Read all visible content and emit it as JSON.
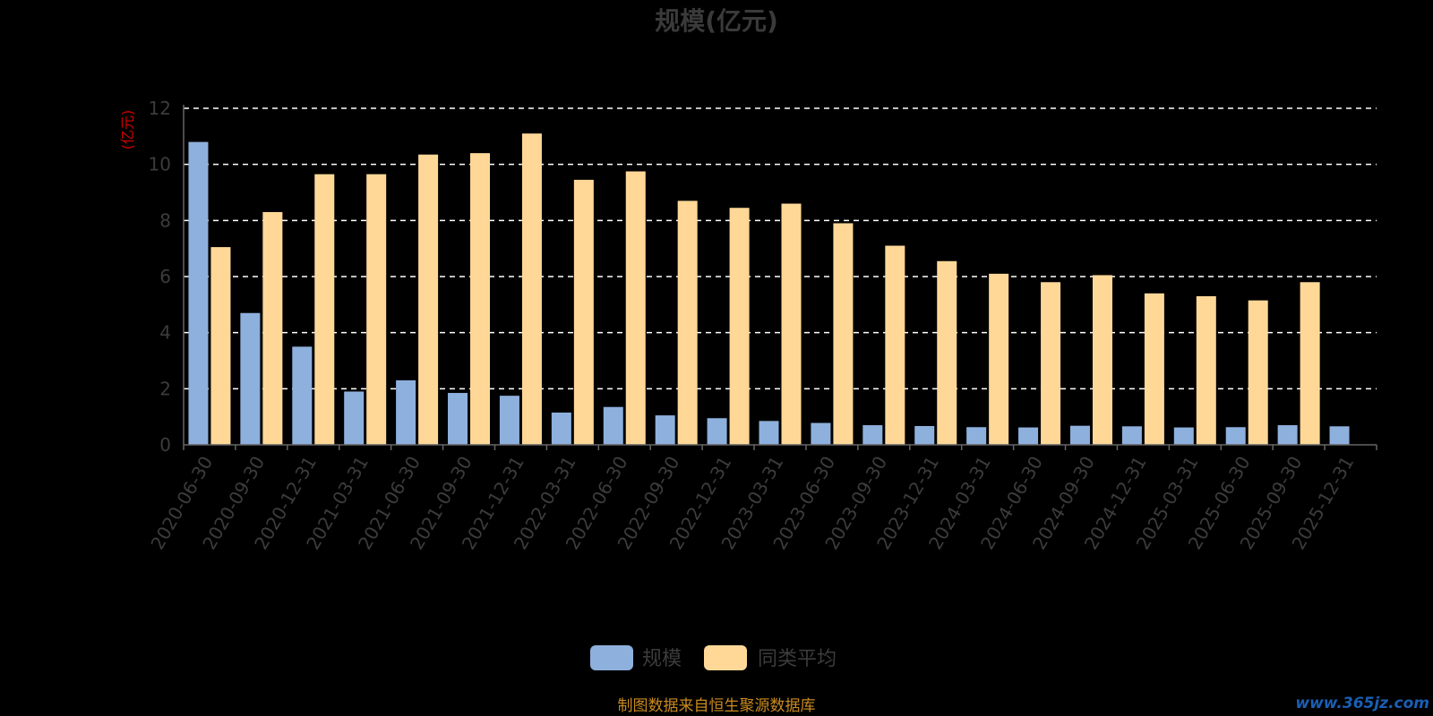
{
  "chart_data": {
    "type": "bar",
    "title": "规模(亿元)",
    "ylabel": "(亿元)",
    "ylim": [
      0,
      12
    ],
    "yticks": [
      0,
      2,
      4,
      6,
      8,
      10,
      12
    ],
    "grid": true,
    "legend_position": "bottom",
    "categories": [
      "2020-06-30",
      "2020-09-30",
      "2020-12-31",
      "2021-03-31",
      "2021-06-30",
      "2021-09-30",
      "2021-12-31",
      "2022-03-31",
      "2022-06-30",
      "2022-09-30",
      "2022-12-31",
      "2023-03-31",
      "2023-06-30",
      "2023-09-30",
      "2023-12-31",
      "2024-03-31",
      "2024-06-30",
      "2024-09-30",
      "2024-12-31",
      "2025-03-31",
      "2025-06-30",
      "2025-09-30",
      "2025-12-31"
    ],
    "series": [
      {
        "name": "规模",
        "color": "#8eb0dd",
        "values": [
          10.8,
          4.7,
          3.5,
          1.9,
          2.3,
          1.85,
          1.75,
          1.15,
          1.35,
          1.05,
          0.95,
          0.85,
          0.78,
          0.7,
          0.67,
          0.63,
          0.62,
          0.68,
          0.66,
          0.62,
          0.63,
          0.7,
          0.66
        ]
      },
      {
        "name": "同类平均",
        "color": "#ffd898",
        "values": [
          7.05,
          8.3,
          9.65,
          9.65,
          10.35,
          10.4,
          11.1,
          9.45,
          9.75,
          8.7,
          8.45,
          8.6,
          7.9,
          7.1,
          6.55,
          6.1,
          5.8,
          6.05,
          5.4,
          5.3,
          5.15,
          5.8,
          null
        ]
      }
    ]
  },
  "footer": {
    "source": "制图数据来自恒生聚源数据库",
    "watermark": "www.365jz.com"
  }
}
